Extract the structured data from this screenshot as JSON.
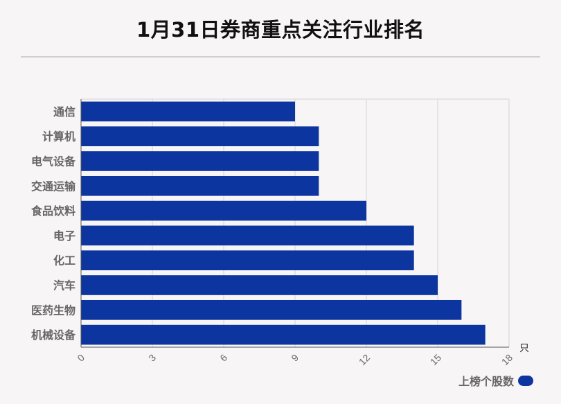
{
  "title": "1月31日券商重点关注行业排名",
  "legend": {
    "label": "上榜个股数",
    "color": "#0d35a0"
  },
  "unit": "只",
  "chart_data": {
    "type": "bar",
    "orientation": "horizontal",
    "categories": [
      "通信",
      "计算机",
      "电气设备",
      "交通运输",
      "食品饮料",
      "电子",
      "化工",
      "汽车",
      "医药生物",
      "机械设备"
    ],
    "series": [
      {
        "name": "上榜个股数",
        "values": [
          9,
          10,
          10,
          10,
          12,
          14,
          14,
          15,
          16,
          17
        ]
      }
    ],
    "xlim": [
      0,
      18
    ],
    "xticks": [
      "0",
      "3",
      "6",
      "9",
      "12",
      "15",
      "18"
    ],
    "grid": true,
    "legend_position": "bottom-right",
    "bar_color": "#0d35a0"
  }
}
